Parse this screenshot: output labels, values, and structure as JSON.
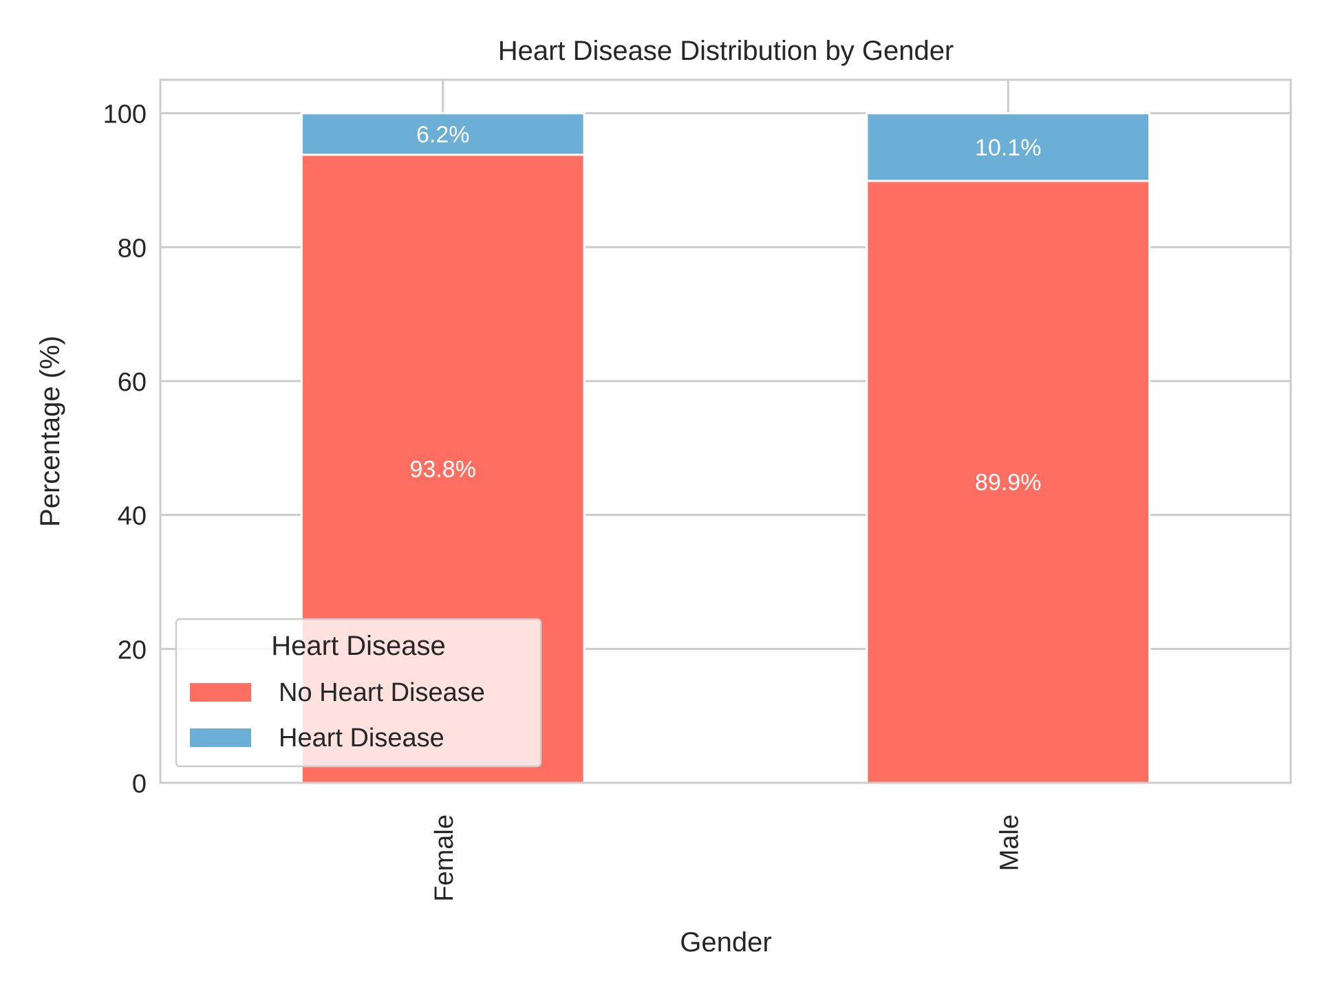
{
  "chart_data": {
    "type": "bar",
    "stacked": true,
    "title": "Heart Disease Distribution by Gender",
    "xlabel": "Gender",
    "ylabel": "Percentage (%)",
    "categories": [
      "Female",
      "Male"
    ],
    "ylim": [
      0,
      105
    ],
    "yticks": [
      0,
      20,
      40,
      60,
      80,
      100
    ],
    "grid": true,
    "legend": {
      "title": "Heart Disease",
      "placement": "lower-left"
    },
    "series": [
      {
        "name": "No Heart Disease",
        "color": "#ff6f61",
        "values": [
          93.8,
          89.9
        ],
        "labels": [
          "93.8%",
          "89.9%"
        ]
      },
      {
        "name": "Heart Disease",
        "color": "#6baed6",
        "values": [
          6.2,
          10.1
        ],
        "labels": [
          "6.2%",
          "10.1%"
        ]
      }
    ]
  }
}
